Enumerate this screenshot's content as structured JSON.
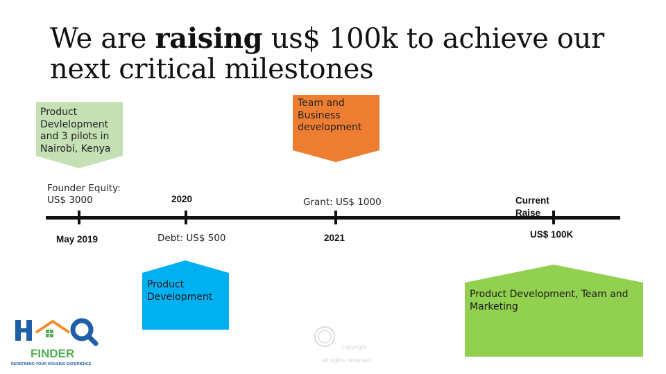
{
  "title": {
    "prefix": "We are ",
    "bold": "raising",
    "suffix": " us$ 100k to achieve our next critical milestones"
  },
  "timeline": {
    "ticks": [
      {
        "date": "May 2019",
        "label": "Founder Equity: US$ 3000"
      },
      {
        "date": "2020",
        "label": "Debt: US$ 500"
      },
      {
        "date": "2021",
        "label": "Grant: US$ 1000"
      },
      {
        "date": "Current Raise",
        "label": "US$ 100K"
      }
    ]
  },
  "callouts": [
    {
      "text": "Product Devlelopment and 3 pilots in Nairobi, Kenya",
      "color": "#c5e0b4"
    },
    {
      "text": "Team and Business development",
      "color": "#ed7d31"
    },
    {
      "text": "Product Development",
      "color": "#00b0f0"
    },
    {
      "text": "Product Development, Team and Marketing",
      "color": "#92d050"
    }
  ],
  "logo": {
    "name": "H Q FINDER",
    "tagline": "REDEFINING YOUR HOUSING EXPERIENCE",
    "primary": "#1f5fa8",
    "accent": "#4caf50",
    "roof": "#f28c28"
  },
  "watermark": {
    "line1": "copyright",
    "line2": "all rights reserved"
  }
}
